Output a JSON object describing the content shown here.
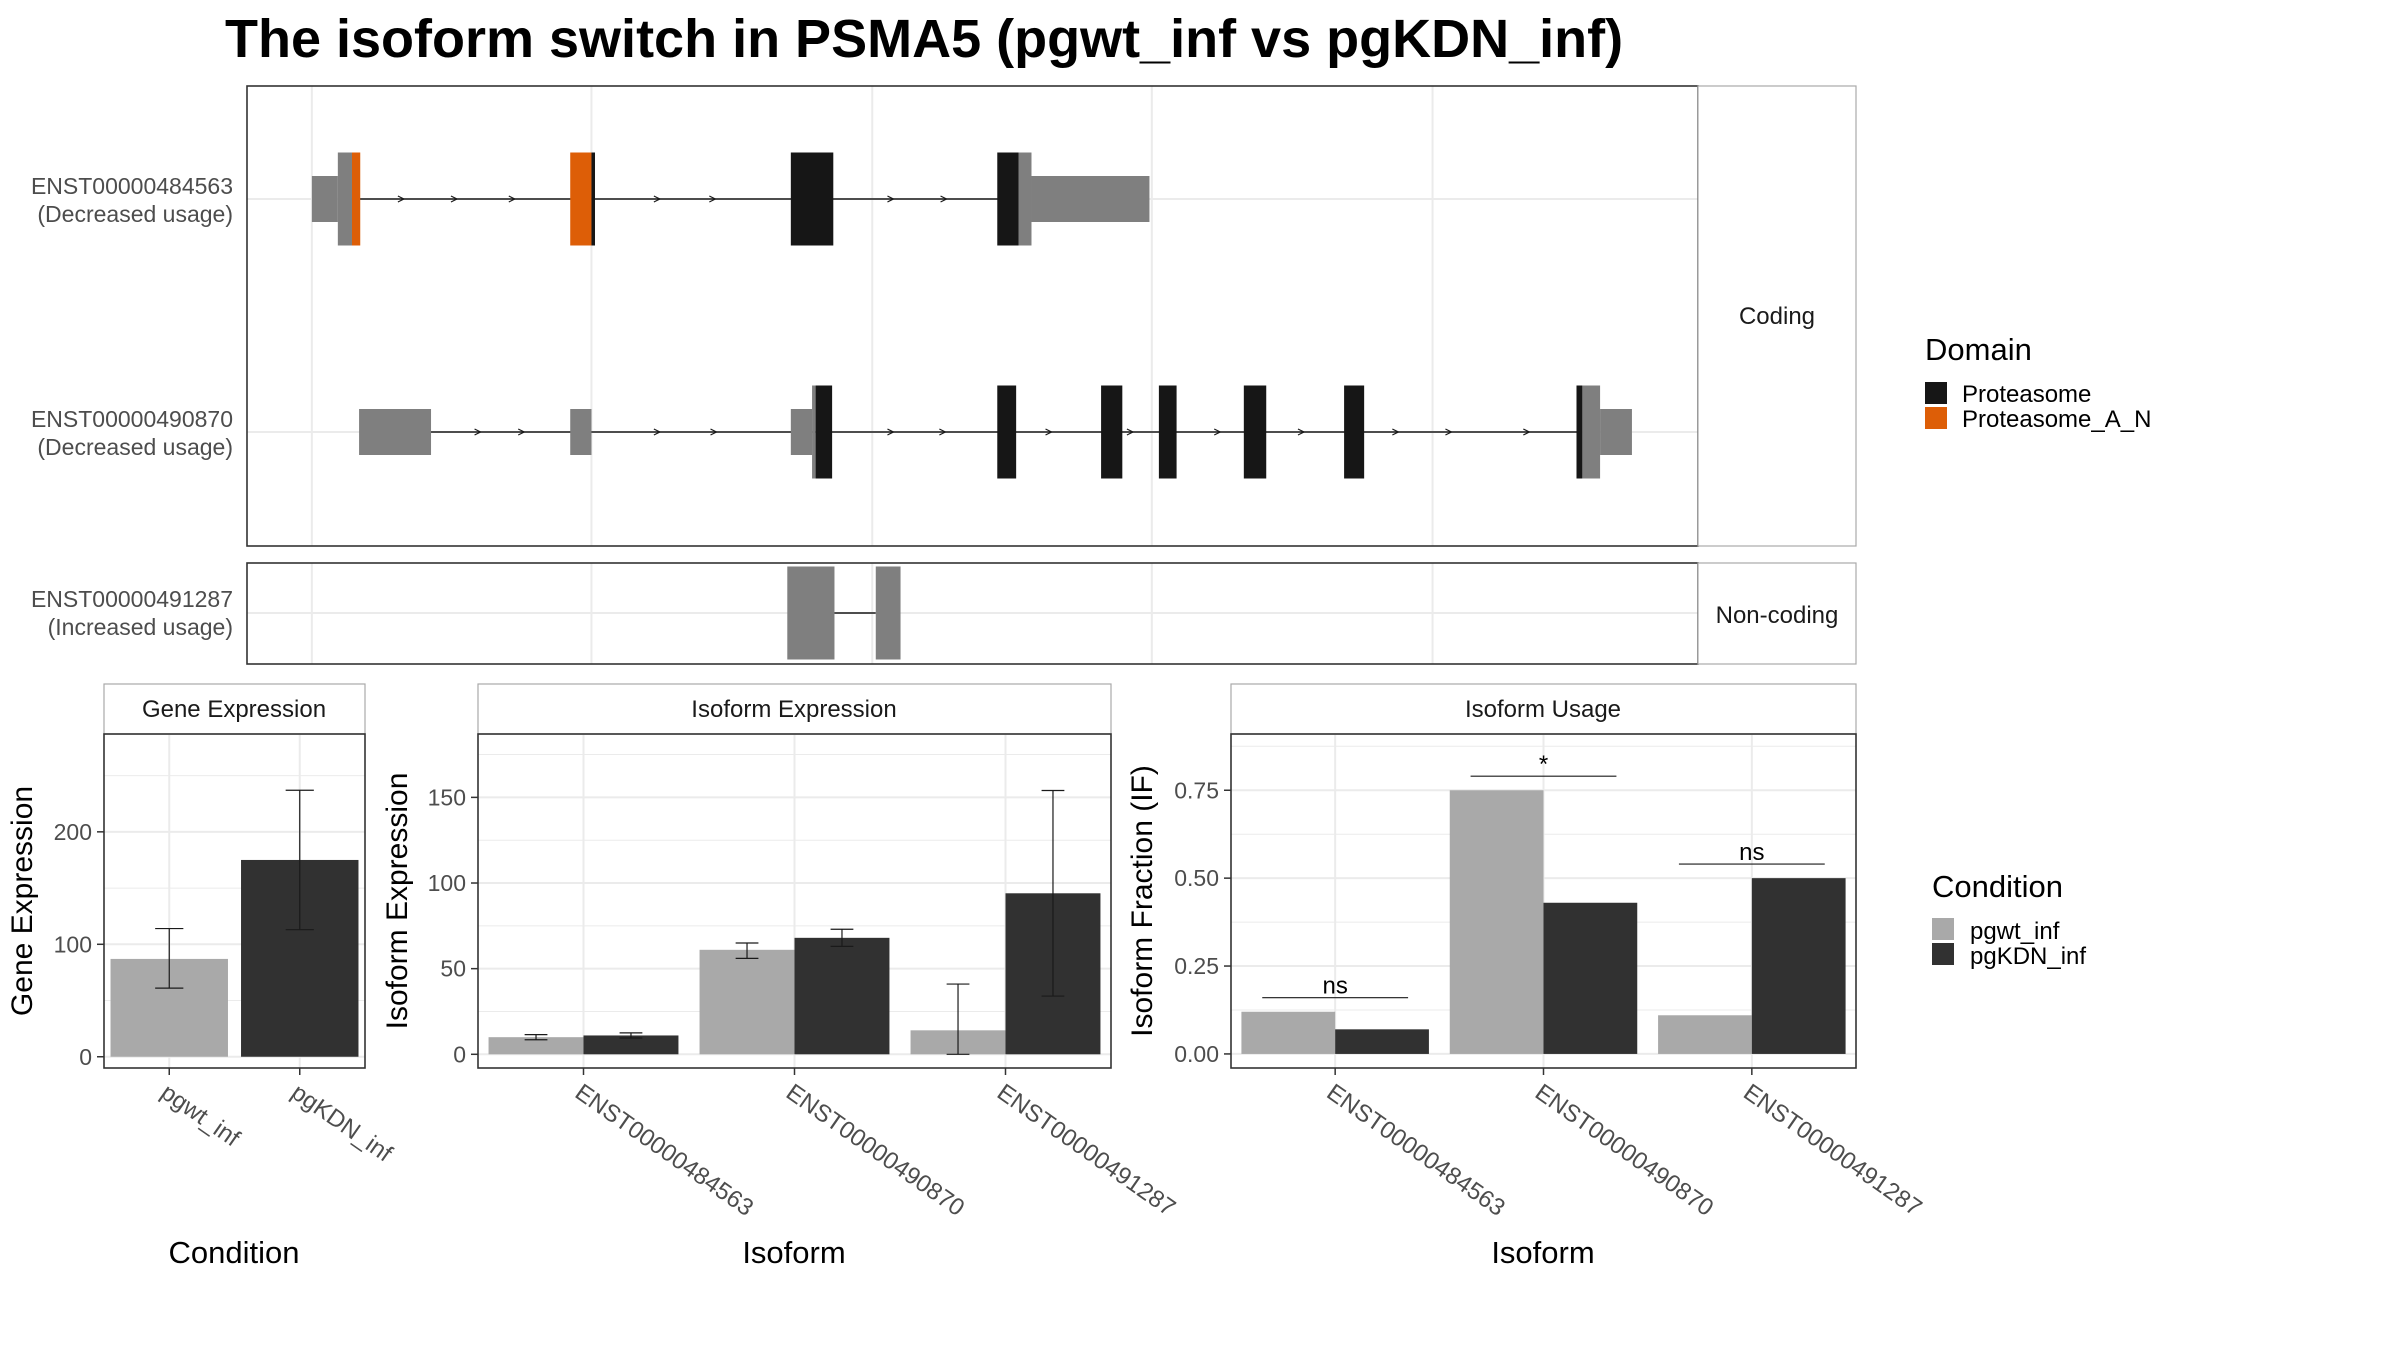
{
  "title": "The isoform switch in PSMA5 (pgwt_inf vs pgKDN_inf)",
  "colors": {
    "utr": "#7f7f7f",
    "proteasome": "#161616",
    "proteasome_a_n": "#dd5e07",
    "pgwt_inf": "#a9a9a9",
    "pgKDN_inf": "#313131",
    "grid": "#ebebeb",
    "panel_border": "#333333",
    "strip_border": "#a9a9a9"
  },
  "structure": {
    "x_range": [
      0,
      1230
    ],
    "facets": [
      {
        "label": "Coding",
        "isoforms": [
          {
            "id": "ENST00000484563",
            "usage": "(Decreased usage)",
            "intron": [
              80,
              649
            ],
            "arrows": [
              133,
              178,
              227,
              350,
              397,
              548,
              593
            ],
            "blocks": [
              {
                "start": 55,
                "end": 77,
                "kind": "utr",
                "size": "small"
              },
              {
                "start": 77,
                "end": 89,
                "kind": "utr",
                "size": "full"
              },
              {
                "start": 89,
                "end": 96,
                "kind": "Proteasome_A_N",
                "size": "full"
              },
              {
                "start": 274,
                "end": 292,
                "kind": "Proteasome_A_N",
                "size": "full"
              },
              {
                "start": 292,
                "end": 295,
                "kind": "Proteasome",
                "size": "full"
              },
              {
                "start": 461,
                "end": 497,
                "kind": "Proteasome",
                "size": "full"
              },
              {
                "start": 636,
                "end": 654,
                "kind": "Proteasome",
                "size": "full"
              },
              {
                "start": 654,
                "end": 665,
                "kind": "utr",
                "size": "full"
              },
              {
                "start": 665,
                "end": 765,
                "kind": "utr",
                "size": "small"
              }
            ]
          },
          {
            "id": "ENST00000490870",
            "usage": "(Decreased usage)",
            "intron": [
              155,
              1130
            ],
            "arrows": [
              198,
              235,
              350,
              398,
              548,
              592,
              682,
              751,
              825,
              896,
              976,
              1021,
              1087
            ],
            "blocks": [
              {
                "start": 95,
                "end": 156,
                "kind": "utr",
                "size": "small"
              },
              {
                "start": 274,
                "end": 292,
                "kind": "utr",
                "size": "small"
              },
              {
                "start": 461,
                "end": 479,
                "kind": "utr",
                "size": "small"
              },
              {
                "start": 479,
                "end": 482,
                "kind": "utr",
                "size": "full"
              },
              {
                "start": 482,
                "end": 496,
                "kind": "Proteasome",
                "size": "full"
              },
              {
                "start": 636,
                "end": 652,
                "kind": "Proteasome",
                "size": "full"
              },
              {
                "start": 724,
                "end": 742,
                "kind": "Proteasome",
                "size": "full"
              },
              {
                "start": 773,
                "end": 788,
                "kind": "Proteasome",
                "size": "full"
              },
              {
                "start": 845,
                "end": 864,
                "kind": "Proteasome",
                "size": "full"
              },
              {
                "start": 930,
                "end": 947,
                "kind": "Proteasome",
                "size": "full"
              },
              {
                "start": 1127,
                "end": 1132,
                "kind": "Proteasome",
                "size": "full"
              },
              {
                "start": 1132,
                "end": 1147,
                "kind": "utr",
                "size": "full"
              },
              {
                "start": 1147,
                "end": 1174,
                "kind": "utr",
                "size": "small"
              }
            ]
          }
        ]
      },
      {
        "label": "Non-coding",
        "isoforms": [
          {
            "id": "ENST00000491287",
            "usage": "(Increased usage)",
            "intron": [
              498,
              533
            ],
            "arrows": [],
            "blocks": [
              {
                "start": 458,
                "end": 498,
                "kind": "utr",
                "size": "full"
              },
              {
                "start": 533,
                "end": 554,
                "kind": "utr",
                "size": "full"
              }
            ]
          }
        ]
      }
    ],
    "legend": {
      "title": "Domain",
      "items": [
        {
          "label": "Proteasome",
          "color": "#161616"
        },
        {
          "label": "Proteasome_A_N",
          "color": "#dd5e07"
        }
      ]
    }
  },
  "chart_data": [
    {
      "type": "bar",
      "title": "Gene Expression",
      "xlabel": "Condition",
      "ylabel": "Gene Expression",
      "categories": [
        "pgwt_inf",
        "pgKDN_inf"
      ],
      "values": [
        87,
        175
      ],
      "errors": [
        [
          61,
          114
        ],
        [
          113,
          237
        ]
      ],
      "ylim": [
        -10,
        287
      ],
      "yticks": [
        0,
        100,
        200
      ],
      "fill_colors": [
        "#a9a9a9",
        "#313131"
      ]
    },
    {
      "type": "bar",
      "title": "Isoform Expression",
      "xlabel": "Isoform",
      "ylabel": "Isoform Expression",
      "categories": [
        "ENST00000484563",
        "ENST00000490870",
        "ENST00000491287"
      ],
      "series": [
        {
          "name": "pgwt_inf",
          "values": [
            10,
            61,
            14
          ],
          "errors": [
            [
              8.5,
              11.5
            ],
            [
              56,
              65
            ],
            [
              0,
              41
            ]
          ]
        },
        {
          "name": "pgKDN_inf",
          "values": [
            11,
            68,
            94
          ],
          "errors": [
            [
              9.5,
              12.5
            ],
            [
              63,
              73
            ],
            [
              34,
              154
            ]
          ]
        }
      ],
      "ylim": [
        -8,
        187
      ],
      "yticks": [
        0,
        50,
        100,
        150
      ]
    },
    {
      "type": "bar",
      "title": "Isoform Usage",
      "xlabel": "Isoform",
      "ylabel": "Isoform Fraction (IF)",
      "categories": [
        "ENST00000484563",
        "ENST00000490870",
        "ENST00000491287"
      ],
      "series": [
        {
          "name": "pgwt_inf",
          "values": [
            0.12,
            0.75,
            0.11
          ]
        },
        {
          "name": "pgKDN_inf",
          "values": [
            0.07,
            0.43,
            0.5
          ]
        }
      ],
      "significance": [
        "ns",
        "*",
        "ns"
      ],
      "ylim": [
        -0.04,
        0.91
      ],
      "yticks": [
        0.0,
        0.25,
        0.5,
        0.75
      ],
      "ytick_labels": [
        "0.00",
        "0.25",
        "0.50",
        "0.75"
      ]
    }
  ],
  "condition_legend": {
    "title": "Condition",
    "items": [
      {
        "label": "pgwt_inf",
        "color": "#a9a9a9"
      },
      {
        "label": "pgKDN_inf",
        "color": "#313131"
      }
    ]
  }
}
